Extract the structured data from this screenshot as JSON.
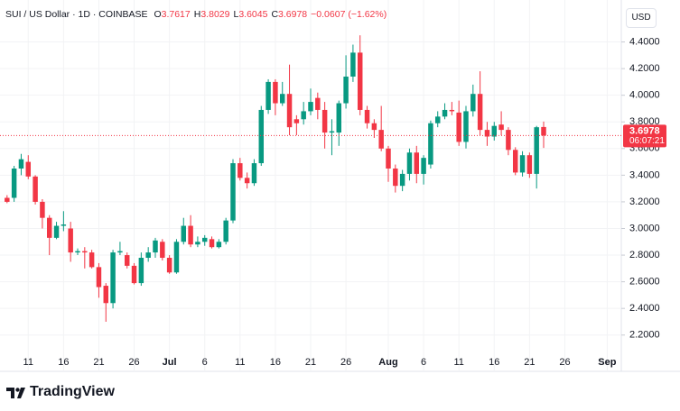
{
  "header": {
    "symbol": "SUI / US Dollar · 1D · COINBASE",
    "items": [
      {
        "label": "O",
        "value": "3.7617"
      },
      {
        "label": "H",
        "value": "3.8029"
      },
      {
        "label": "L",
        "value": "3.6045"
      },
      {
        "label": "C",
        "value": "3.6978"
      }
    ],
    "change": "−0.0607 (−1.62%)",
    "currency": "USD"
  },
  "last_price": {
    "label": "3.6978",
    "countdown": "06:07:21"
  },
  "footer": {
    "brand": "TradingView"
  },
  "chart_data": {
    "type": "candlestick",
    "x": [
      "Jun 8",
      "Jun 9",
      "Jun 10",
      "Jun 11",
      "Jun 12",
      "Jun 13",
      "Jun 14",
      "Jun 15",
      "Jun 16",
      "Jun 17",
      "Jun 18",
      "Jun 19",
      "Jun 20",
      "Jun 21",
      "Jun 22",
      "Jun 23",
      "Jun 24",
      "Jun 25",
      "Jun 26",
      "Jun 27",
      "Jun 28",
      "Jun 29",
      "Jun 30",
      "Jul 1",
      "Jul 2",
      "Jul 3",
      "Jul 4",
      "Jul 5",
      "Jul 6",
      "Jul 7",
      "Jul 8",
      "Jul 9",
      "Jul 10",
      "Jul 11",
      "Jul 12",
      "Jul 13",
      "Jul 14",
      "Jul 15",
      "Jul 16",
      "Jul 17",
      "Jul 18",
      "Jul 19",
      "Jul 20",
      "Jul 21",
      "Jul 22",
      "Jul 23",
      "Jul 24",
      "Jul 25",
      "Jul 26",
      "Jul 27",
      "Jul 28",
      "Jul 29",
      "Jul 30",
      "Jul 31",
      "Aug 1",
      "Aug 2",
      "Aug 3",
      "Aug 4",
      "Aug 5",
      "Aug 6",
      "Aug 7",
      "Aug 8",
      "Aug 9",
      "Aug 10",
      "Aug 11",
      "Aug 12",
      "Aug 13",
      "Aug 14",
      "Aug 15",
      "Aug 16",
      "Aug 17",
      "Aug 18",
      "Aug 19",
      "Aug 20",
      "Aug 21",
      "Aug 22",
      "Aug 23"
    ],
    "open": [
      3.23,
      3.23,
      3.45,
      3.5,
      3.39,
      3.2,
      3.08,
      2.93,
      3.02,
      3.0,
      2.82,
      2.83,
      2.82,
      2.71,
      2.57,
      2.44,
      2.82,
      2.8,
      2.72,
      2.59,
      2.78,
      2.82,
      2.9,
      2.78,
      2.67,
      2.9,
      3.02,
      2.88,
      2.9,
      2.92,
      2.86,
      2.9,
      3.06,
      3.49,
      3.38,
      3.34,
      3.49,
      3.89,
      4.1,
      3.94,
      4.01,
      3.82,
      3.82,
      3.88,
      3.98,
      3.89,
      3.72,
      3.72,
      3.94,
      4.14,
      4.32,
      3.89,
      3.79,
      3.74,
      3.6,
      3.45,
      3.32,
      3.41,
      3.57,
      3.41,
      3.48,
      3.79,
      3.84,
      3.89,
      3.87,
      3.65,
      3.88,
      4.01,
      3.74,
      3.69,
      3.78,
      3.74,
      3.59,
      3.42,
      3.55,
      3.41,
      3.7617
    ],
    "high": [
      3.25,
      3.47,
      3.56,
      3.55,
      3.4,
      3.22,
      3.1,
      3.05,
      3.13,
      3.05,
      2.85,
      2.86,
      2.84,
      2.74,
      2.59,
      2.84,
      2.9,
      2.82,
      2.74,
      2.82,
      2.86,
      2.93,
      2.92,
      2.8,
      2.92,
      3.08,
      3.1,
      2.94,
      2.95,
      2.94,
      2.92,
      3.08,
      3.52,
      3.53,
      3.42,
      3.52,
      3.92,
      4.12,
      4.12,
      4.1,
      4.23,
      3.85,
      3.95,
      4.05,
      4.02,
      3.95,
      3.82,
      3.96,
      4.3,
      4.38,
      4.45,
      3.92,
      3.82,
      3.92,
      3.62,
      3.48,
      3.44,
      3.6,
      3.62,
      3.55,
      3.81,
      3.88,
      3.94,
      3.95,
      3.96,
      3.92,
      4.08,
      4.18,
      3.8,
      3.8,
      3.88,
      3.76,
      3.61,
      3.58,
      3.57,
      3.77,
      3.8029
    ],
    "low": [
      3.19,
      3.2,
      3.4,
      3.37,
      3.18,
      3.0,
      2.8,
      2.92,
      2.98,
      2.75,
      2.8,
      2.7,
      2.7,
      2.48,
      2.3,
      2.4,
      2.8,
      2.7,
      2.58,
      2.57,
      2.75,
      2.78,
      2.76,
      2.66,
      2.66,
      2.88,
      2.86,
      2.86,
      2.87,
      2.85,
      2.85,
      2.88,
      3.04,
      3.36,
      3.3,
      3.32,
      3.47,
      3.86,
      3.85,
      3.92,
      3.7,
      3.7,
      3.78,
      3.85,
      3.82,
      3.6,
      3.55,
      3.62,
      3.9,
      4.1,
      3.85,
      3.75,
      3.68,
      3.58,
      3.35,
      3.27,
      3.28,
      3.36,
      3.34,
      3.33,
      3.45,
      3.76,
      3.82,
      3.85,
      3.62,
      3.6,
      3.84,
      3.7,
      3.62,
      3.66,
      3.7,
      3.55,
      3.4,
      3.39,
      3.38,
      3.3,
      3.6045
    ],
    "close": [
      3.2,
      3.45,
      3.52,
      3.39,
      3.2,
      3.08,
      2.93,
      3.02,
      3.03,
      2.82,
      2.83,
      2.82,
      2.71,
      2.56,
      2.44,
      2.82,
      2.83,
      2.72,
      2.59,
      2.78,
      2.82,
      2.91,
      2.78,
      2.67,
      2.9,
      3.02,
      2.88,
      2.9,
      2.93,
      2.86,
      2.9,
      3.06,
      3.49,
      3.38,
      3.34,
      3.49,
      3.89,
      4.1,
      3.94,
      4.01,
      3.76,
      3.79,
      3.88,
      3.95,
      3.89,
      3.72,
      3.73,
      3.94,
      4.14,
      4.32,
      3.89,
      3.79,
      3.74,
      3.6,
      3.45,
      3.32,
      3.41,
      3.57,
      3.41,
      3.53,
      3.79,
      3.84,
      3.89,
      3.88,
      3.65,
      3.88,
      4.01,
      3.74,
      3.69,
      3.77,
      3.74,
      3.59,
      3.42,
      3.55,
      3.41,
      3.76,
      3.6978
    ],
    "up_color": "#089981",
    "down_color": "#f23645",
    "xlim": [
      "Jun 7",
      "Sep 3"
    ],
    "xticks": [
      {
        "value": "Jun 11",
        "label": "11"
      },
      {
        "value": "Jun 16",
        "label": "16"
      },
      {
        "value": "Jun 21",
        "label": "21"
      },
      {
        "value": "Jun 26",
        "label": "26"
      },
      {
        "value": "Jul 1",
        "label": "Jul"
      },
      {
        "value": "Jul 6",
        "label": "6"
      },
      {
        "value": "Jul 11",
        "label": "11"
      },
      {
        "value": "Jul 16",
        "label": "16"
      },
      {
        "value": "Jul 21",
        "label": "21"
      },
      {
        "value": "Jul 26",
        "label": "26"
      },
      {
        "value": "Aug 1",
        "label": "Aug"
      },
      {
        "value": "Aug 6",
        "label": "6"
      },
      {
        "value": "Aug 11",
        "label": "11"
      },
      {
        "value": "Aug 16",
        "label": "16"
      },
      {
        "value": "Aug 21",
        "label": "21"
      },
      {
        "value": "Aug 26",
        "label": "26"
      },
      {
        "value": "Sep 1",
        "label": "Sep"
      }
    ],
    "ylim": [
      2.063,
      4.715
    ],
    "yticks": [
      {
        "value": 2.2,
        "label": "2.2000"
      },
      {
        "value": 2.4,
        "label": "2.4000"
      },
      {
        "value": 2.6,
        "label": "2.6000"
      },
      {
        "value": 2.8,
        "label": "2.8000"
      },
      {
        "value": 3.0,
        "label": "3.0000"
      },
      {
        "value": 3.2,
        "label": "3.2000"
      },
      {
        "value": 3.4,
        "label": "3.4000"
      },
      {
        "value": 3.6,
        "label": "3.6000"
      },
      {
        "value": 3.8,
        "label": "3.8000"
      },
      {
        "value": 4.0,
        "label": "4.0000"
      },
      {
        "value": 4.2,
        "label": "4.2000"
      },
      {
        "value": 4.4,
        "label": "4.4000"
      }
    ],
    "grid": true
  }
}
